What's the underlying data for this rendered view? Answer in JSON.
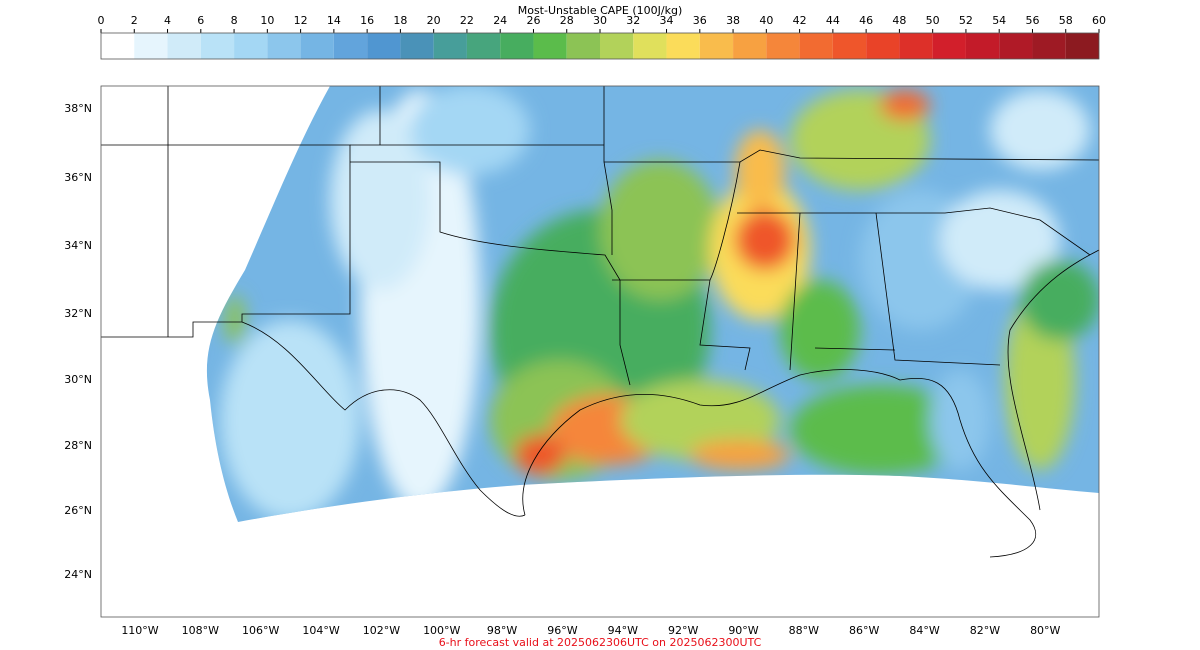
{
  "colorbar": {
    "title": "Most-Unstable CAPE (100J/kg)",
    "ticks": [
      0,
      2,
      4,
      6,
      8,
      10,
      12,
      14,
      16,
      18,
      20,
      22,
      24,
      26,
      28,
      30,
      32,
      34,
      36,
      38,
      40,
      42,
      44,
      46,
      48,
      50,
      52,
      54,
      56,
      58,
      60
    ],
    "colors": [
      "#ffffff",
      "#e6f5fd",
      "#d0ebf9",
      "#b9e2f7",
      "#a4d7f4",
      "#8cc6ec",
      "#75b5e4",
      "#62a4dc",
      "#5096d1",
      "#4a92b8",
      "#479e9a",
      "#47a57d",
      "#47ad5f",
      "#5bbc4b",
      "#8cc355",
      "#b2d25a",
      "#e0e05c",
      "#fbdc5a",
      "#f9bc4c",
      "#f7a141",
      "#f5863a",
      "#f26b31",
      "#ef562b",
      "#e94328",
      "#dd3029",
      "#d21f2b",
      "#c31b29",
      "#b01a27",
      "#9e1a24",
      "#8c1a20"
    ]
  },
  "map": {
    "lat_labels": [
      "38°N",
      "36°N",
      "34°N",
      "32°N",
      "30°N",
      "28°N",
      "26°N",
      "24°N"
    ],
    "lon_labels": [
      "110°W",
      "108°W",
      "106°W",
      "104°W",
      "102°W",
      "100°W",
      "98°W",
      "96°W",
      "94°W",
      "92°W",
      "90°W",
      "88°W",
      "86°W",
      "84°W",
      "82°W",
      "80°W"
    ]
  },
  "footer": "6-hr forecast valid at 2025062306UTC on 2025062300UTC"
}
